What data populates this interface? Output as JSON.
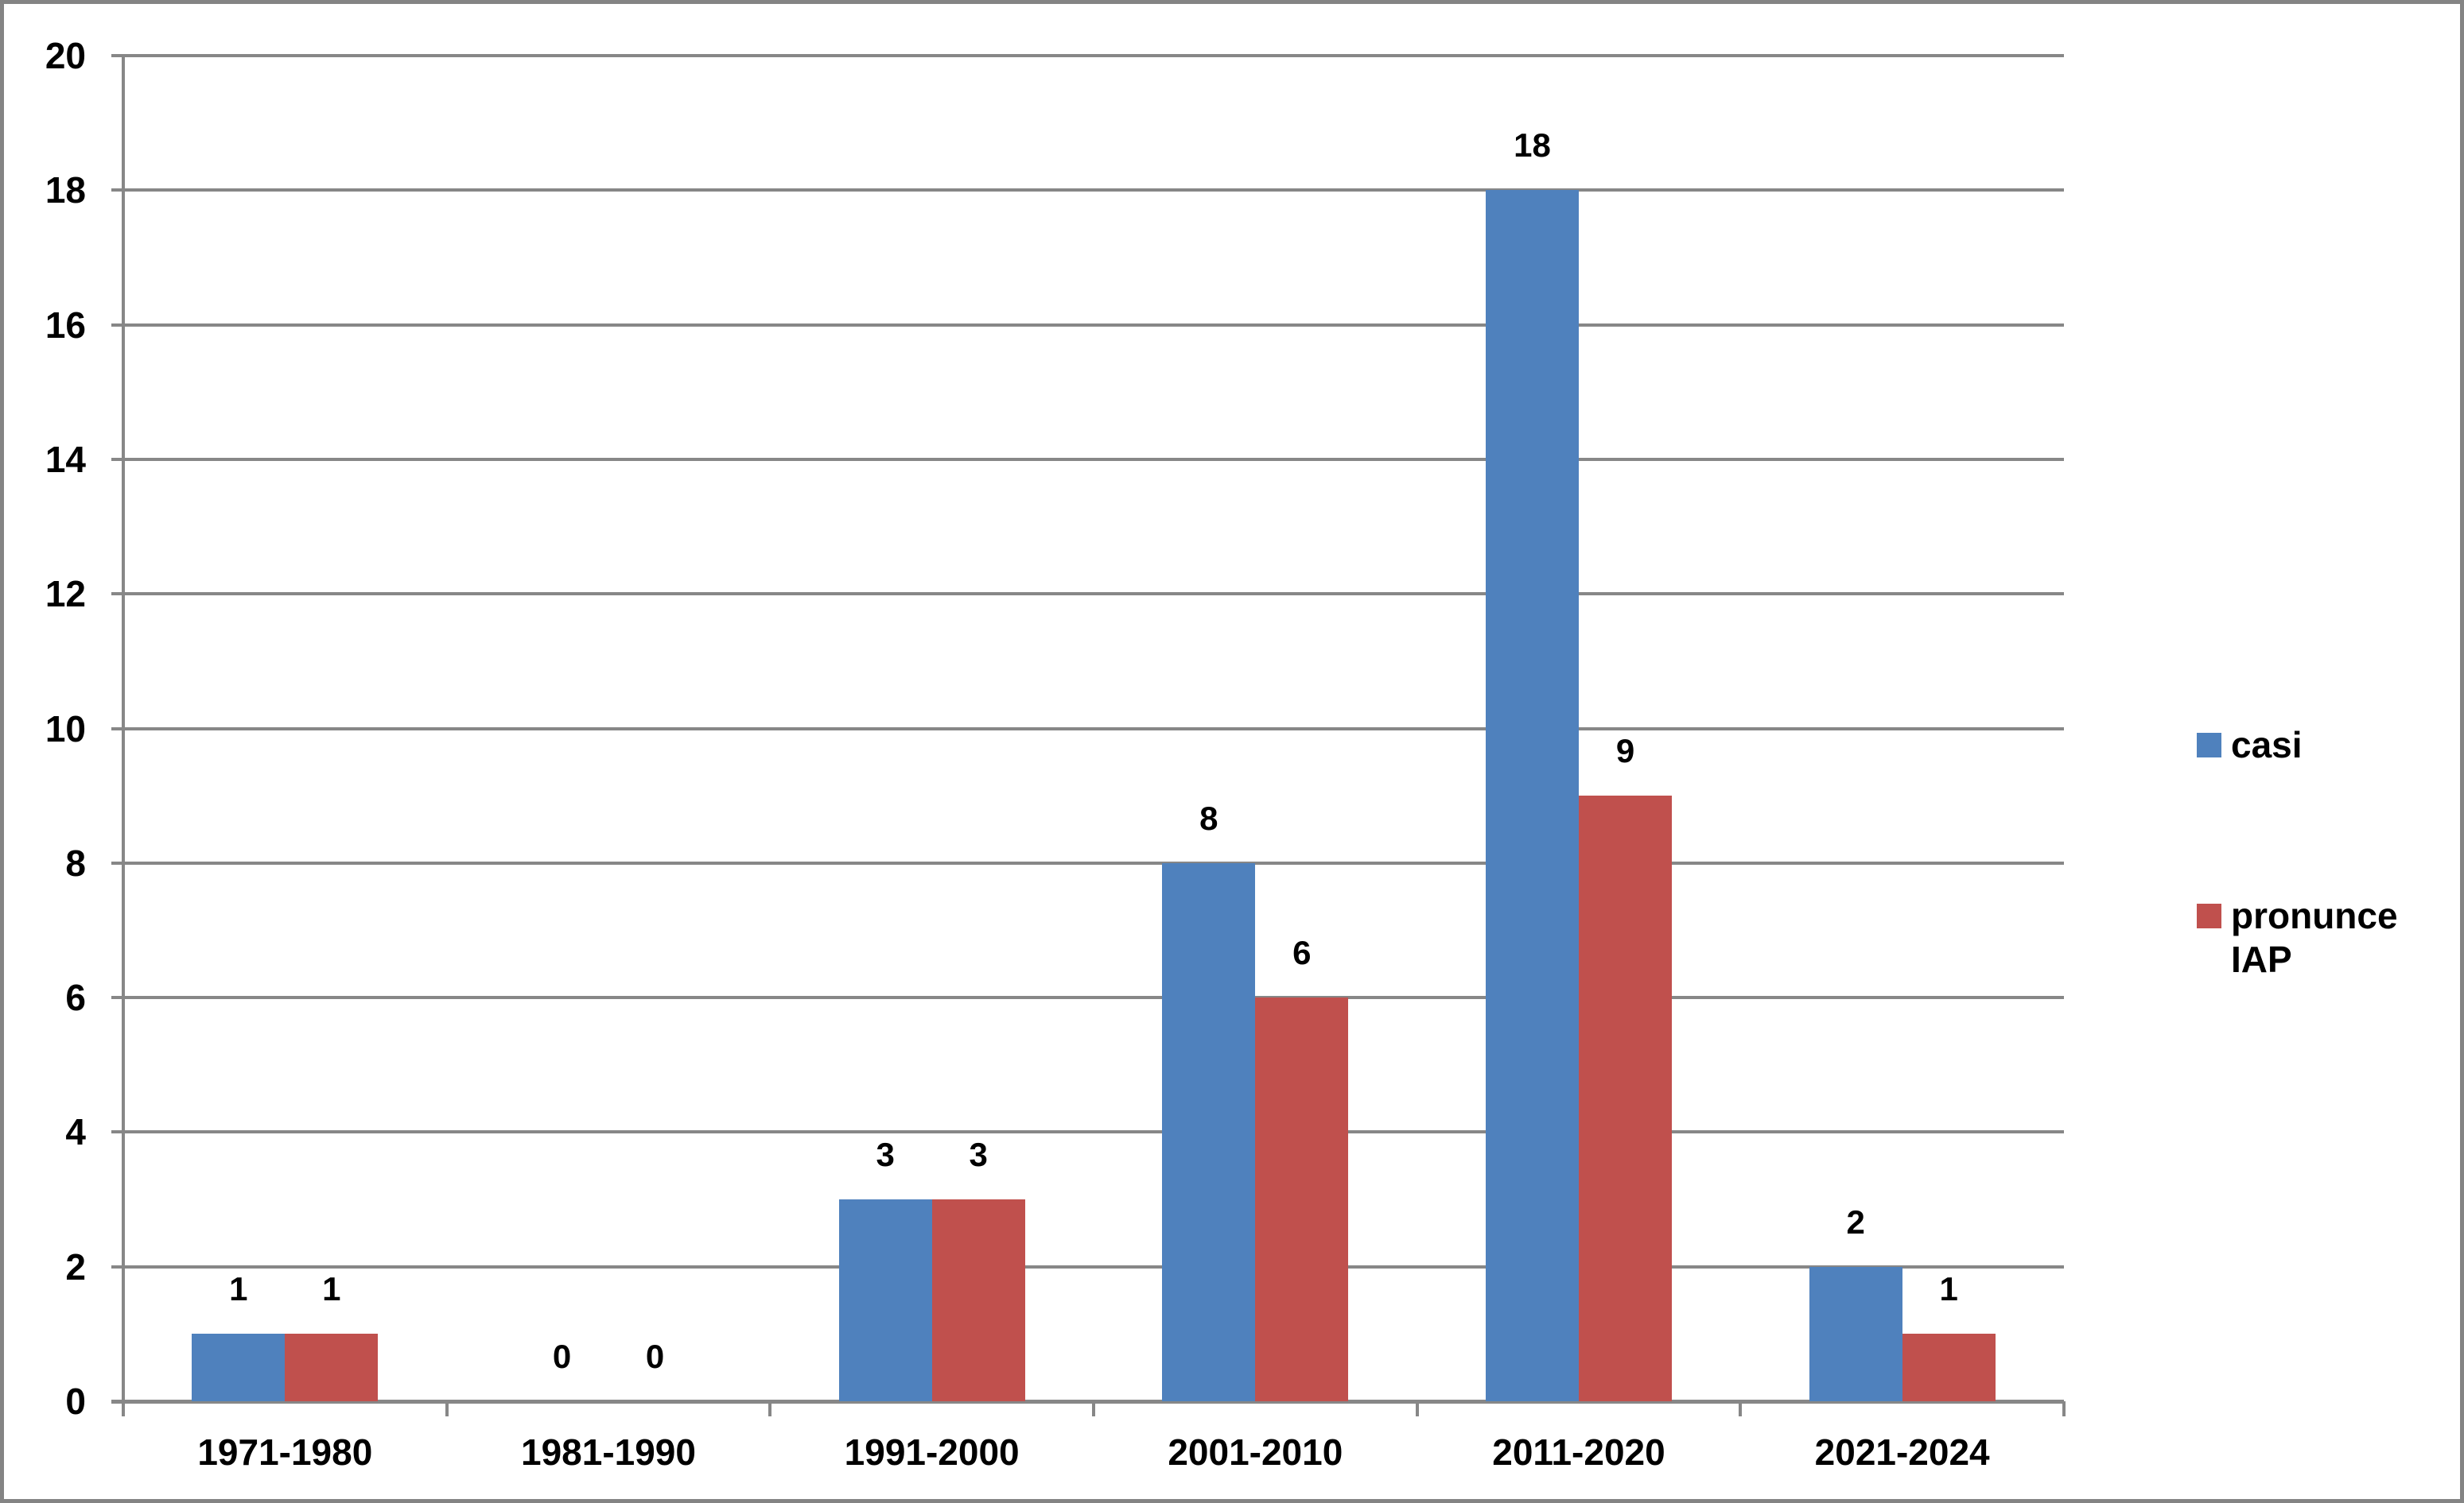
{
  "chart_data": {
    "type": "bar",
    "title": "",
    "xlabel": "",
    "ylabel": "",
    "categories": [
      "1971-1980",
      "1981-1990",
      "1991-2000",
      "2001-2010",
      "2011-2020",
      "2021-2024"
    ],
    "series": [
      {
        "name": "casi",
        "color": "#4F81BD",
        "values": [
          1,
          0,
          3,
          8,
          18,
          2
        ]
      },
      {
        "name": "pronunce IAP",
        "color": "#C0504D",
        "values": [
          1,
          0,
          3,
          6,
          9,
          1
        ]
      }
    ],
    "ylim": [
      0,
      20
    ],
    "ytick_step": 2,
    "yticks": [
      0,
      2,
      4,
      6,
      8,
      10,
      12,
      14,
      16,
      18,
      20
    ],
    "grid": true,
    "data_labels": true,
    "legend_position": "right"
  },
  "legend": {
    "items": [
      {
        "lines": [
          "casi"
        ],
        "color": "#4F81BD"
      },
      {
        "lines": [
          "pronunce",
          "IAP"
        ],
        "color": "#C0504D"
      }
    ]
  },
  "colors": {
    "grid": "#878787",
    "axis": "#878787",
    "border": "#848484",
    "text": "#000000",
    "background": "#ffffff"
  }
}
